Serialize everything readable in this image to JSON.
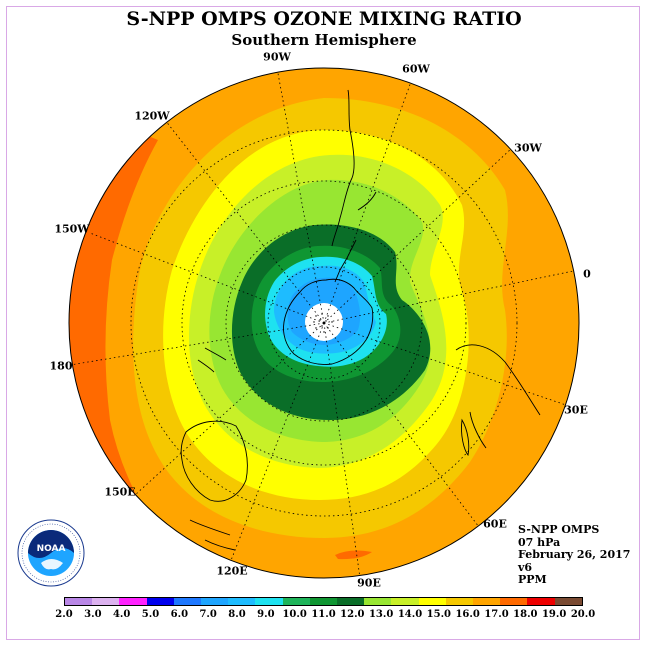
{
  "title": "S-NPP OMPS OZONE MIXING RATIO",
  "subtitle": "Southern Hemisphere",
  "longitude_labels": [
    "90W",
    "60W",
    "30W",
    "0",
    "30E",
    "60E",
    "90E",
    "120E",
    "150E",
    "180",
    "150W",
    "120W"
  ],
  "info": {
    "instrument": "S-NPP OMPS",
    "level": "07 hPa",
    "date": "February 26, 2017",
    "version": "v6",
    "units": "PPM"
  },
  "logo_text": "NOAA",
  "colorbar": {
    "labels": [
      "2.0",
      "3.0",
      "4.0",
      "5.0",
      "6.0",
      "7.0",
      "8.0",
      "9.0",
      "10.0",
      "11.0",
      "12.0",
      "13.0",
      "14.0",
      "15.0",
      "16.0",
      "17.0",
      "18.0",
      "19.0",
      "20.0"
    ],
    "colors": [
      "#b987e6",
      "#dcb2ef",
      "#ff22ff",
      "#0000ee",
      "#1e78ff",
      "#1ea5ff",
      "#1ebcff",
      "#1ee2f0",
      "#1eb45a",
      "#0f9632",
      "#0a6e28",
      "#98e632",
      "#c8f028",
      "#ffff00",
      "#f5c800",
      "#ffa500",
      "#ff6a00",
      "#ee0000",
      "#7a4a32"
    ]
  }
}
